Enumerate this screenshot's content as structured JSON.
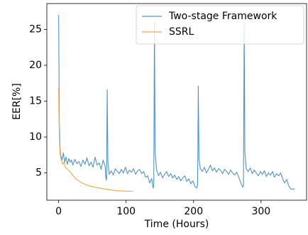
{
  "chart_data": {
    "type": "line",
    "xlabel": "Time (Hours)",
    "ylabel": "EER[%]",
    "xlim": [
      -17.5,
      367.5
    ],
    "ylim": [
      1.2,
      28.6
    ],
    "xticks": [
      0,
      100,
      200,
      300
    ],
    "yticks": [
      5,
      10,
      15,
      20,
      25
    ],
    "legend": "upper right",
    "series": [
      {
        "name": "Two-stage Framework",
        "color": "#4f93c8",
        "x": [
          0,
          1,
          2,
          3,
          5,
          7,
          9,
          11,
          13,
          15,
          17,
          19,
          21,
          24,
          27,
          30,
          33,
          36,
          39,
          42,
          45,
          48,
          51,
          54,
          57,
          60,
          63,
          66,
          69,
          70,
          71,
          72,
          73,
          75,
          78,
          81,
          84,
          87,
          90,
          93,
          96,
          99,
          102,
          105,
          108,
          111,
          114,
          117,
          120,
          123,
          126,
          129,
          132,
          135,
          138,
          140,
          141,
          142,
          143,
          145,
          148,
          151,
          154,
          157,
          160,
          163,
          166,
          169,
          172,
          175,
          178,
          181,
          184,
          187,
          190,
          193,
          196,
          199,
          202,
          205,
          206,
          207,
          208,
          210,
          213,
          216,
          219,
          222,
          225,
          228,
          231,
          234,
          237,
          240,
          243,
          246,
          249,
          252,
          255,
          258,
          261,
          264,
          267,
          270,
          273,
          274,
          275,
          276,
          278,
          281,
          284,
          287,
          290,
          293,
          296,
          299,
          302,
          305,
          308,
          311,
          314,
          317,
          320,
          323,
          326,
          329,
          332,
          335,
          338,
          341,
          344,
          347,
          350
        ],
        "values": [
          27,
          12,
          8.5,
          7.5,
          6.8,
          7.8,
          6.5,
          7.2,
          6.2,
          7,
          6.5,
          6.8,
          6.1,
          6.9,
          6.3,
          6.6,
          5.9,
          6.8,
          6.2,
          7.1,
          6,
          6.5,
          5.8,
          7.2,
          6.1,
          6.4,
          5.5,
          6.8,
          5.9,
          4.3,
          4.0,
          16.6,
          6.5,
          4.8,
          5.3,
          4.7,
          5.6,
          5.2,
          4.9,
          5.5,
          5.0,
          5.8,
          4.9,
          5.4,
          5.1,
          5.6,
          4.8,
          5.3,
          5.5,
          4.9,
          5.2,
          4.4,
          4.6,
          3.6,
          4.2,
          2.9,
          3.2,
          26,
          8,
          5.5,
          4.6,
          5.1,
          4.3,
          4.8,
          5.2,
          4.5,
          4.9,
          4.3,
          4.7,
          4.1,
          4.5,
          3.9,
          4.3,
          4.6,
          3.8,
          4.2,
          3.5,
          3.9,
          3.1,
          2.9,
          3.3,
          17.1,
          7,
          5.6,
          5.2,
          5.8,
          5.0,
          5.5,
          6.1,
          5.3,
          5.7,
          5.1,
          5.6,
          5.4,
          4.9,
          5.5,
          5.2,
          4.8,
          5.4,
          5.0,
          4.7,
          5.1,
          4.4,
          3.6,
          3.0,
          3.2,
          26,
          8,
          5.6,
          5.2,
          5.7,
          4.9,
          5.4,
          5.0,
          4.6,
          5.2,
          4.8,
          5.3,
          4.5,
          5.0,
          4.7,
          5.2,
          4.4,
          4.9,
          4.6,
          5.0,
          4.2,
          3.6,
          4.1,
          3.2,
          2.8,
          2.7,
          2.8
        ]
      },
      {
        "name": "SSRL",
        "color": "#f9a443",
        "x": [
          0,
          1,
          2,
          3,
          4,
          6,
          8,
          10,
          13,
          16,
          20,
          25,
          30,
          35,
          40,
          45,
          50,
          60,
          70,
          80,
          90,
          100,
          110
        ],
        "values": [
          16.8,
          10,
          7.8,
          7.2,
          6.8,
          6.2,
          6.5,
          5.8,
          5.5,
          5.3,
          4.8,
          4.2,
          3.9,
          3.6,
          3.4,
          3.2,
          3.1,
          2.9,
          2.75,
          2.6,
          2.5,
          2.45,
          2.45
        ]
      }
    ]
  }
}
